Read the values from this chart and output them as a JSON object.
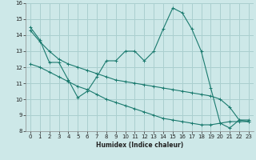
{
  "xlabel": "Humidex (Indice chaleur)",
  "background_color": "#cde8e8",
  "grid_color": "#aacfcf",
  "line_color": "#1a7a6e",
  "xlim": [
    -0.5,
    23.5
  ],
  "ylim": [
    8,
    16
  ],
  "xticks": [
    0,
    1,
    2,
    3,
    4,
    5,
    6,
    7,
    8,
    9,
    10,
    11,
    12,
    13,
    14,
    15,
    16,
    17,
    18,
    19,
    20,
    21,
    22,
    23
  ],
  "yticks": [
    8,
    9,
    10,
    11,
    12,
    13,
    14,
    15,
    16
  ],
  "series": [
    {
      "x": [
        0,
        1,
        2,
        3,
        4,
        5,
        6,
        7,
        8,
        9,
        10,
        11,
        12,
        13,
        14,
        15,
        16,
        17,
        18,
        19,
        20,
        21,
        22,
        23
      ],
      "y": [
        14.5,
        13.7,
        12.3,
        12.3,
        11.2,
        10.1,
        10.5,
        11.4,
        12.4,
        12.4,
        13.0,
        13.0,
        12.4,
        13.0,
        14.4,
        15.7,
        15.4,
        14.4,
        13.0,
        10.7,
        8.5,
        8.2,
        8.7,
        8.7
      ]
    },
    {
      "x": [
        0,
        1,
        2,
        3,
        4,
        5,
        6,
        7,
        8,
        9,
        10,
        11,
        12,
        13,
        14,
        15,
        16,
        17,
        18,
        19,
        20,
        21,
        22,
        23
      ],
      "y": [
        14.3,
        13.6,
        13.0,
        12.5,
        12.2,
        12.0,
        11.8,
        11.6,
        11.4,
        11.2,
        11.1,
        11.0,
        10.9,
        10.8,
        10.7,
        10.6,
        10.5,
        10.4,
        10.3,
        10.2,
        10.0,
        9.5,
        8.7,
        8.6
      ]
    },
    {
      "x": [
        0,
        1,
        2,
        3,
        4,
        5,
        6,
        7,
        8,
        9,
        10,
        11,
        12,
        13,
        14,
        15,
        16,
        17,
        18,
        19,
        20,
        21,
        22,
        23
      ],
      "y": [
        12.2,
        12.0,
        11.7,
        11.4,
        11.1,
        10.8,
        10.6,
        10.3,
        10.0,
        9.8,
        9.6,
        9.4,
        9.2,
        9.0,
        8.8,
        8.7,
        8.6,
        8.5,
        8.4,
        8.4,
        8.5,
        8.6,
        8.6,
        8.6
      ]
    }
  ]
}
